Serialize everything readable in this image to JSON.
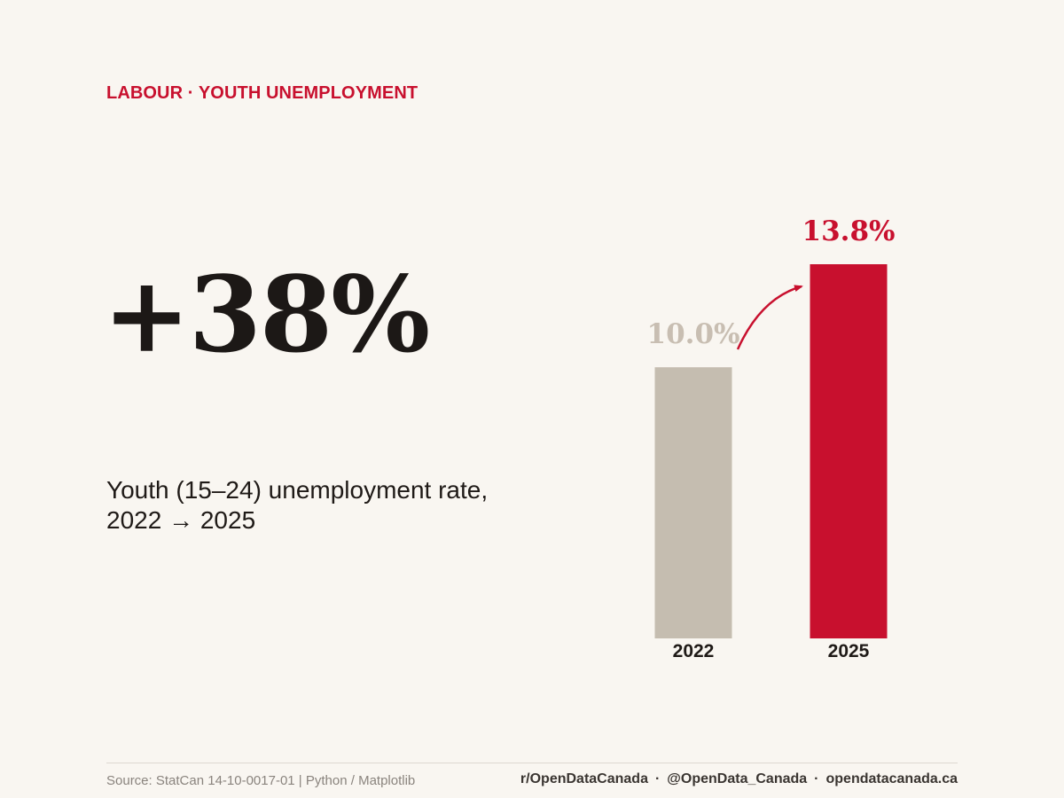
{
  "header": {
    "kicker": "LABOUR · YOUTH UNEMPLOYMENT"
  },
  "headline": {
    "value": "+38%"
  },
  "description": {
    "line1": "Youth (15–24) unemployment rate,",
    "line2": "2022 → 2025"
  },
  "colors": {
    "accent": "#c8102e",
    "muted_bar": "#c5bdb0",
    "muted_label": "#c8beb2",
    "text": "#1f1a17"
  },
  "chart_data": {
    "type": "bar",
    "categories": [
      "2022",
      "2025"
    ],
    "values": [
      10.0,
      13.8
    ],
    "value_labels": [
      "10.0%",
      "13.8%"
    ],
    "bar_colors": [
      "#c5bdb0",
      "#c8102e"
    ],
    "value_label_colors": [
      "#c8beb2",
      "#c8102e"
    ],
    "ylim": [
      0,
      13.8
    ],
    "grid": false,
    "title": "",
    "xlabel": "",
    "ylabel": ""
  },
  "footer": {
    "source": "Source: StatCan 14-10-0017-01 | Python / Matplotlib",
    "reddit": "r/OpenDataCanada",
    "handle": "@OpenData_Canada",
    "website": "opendatacanada.ca",
    "separator": "·"
  }
}
